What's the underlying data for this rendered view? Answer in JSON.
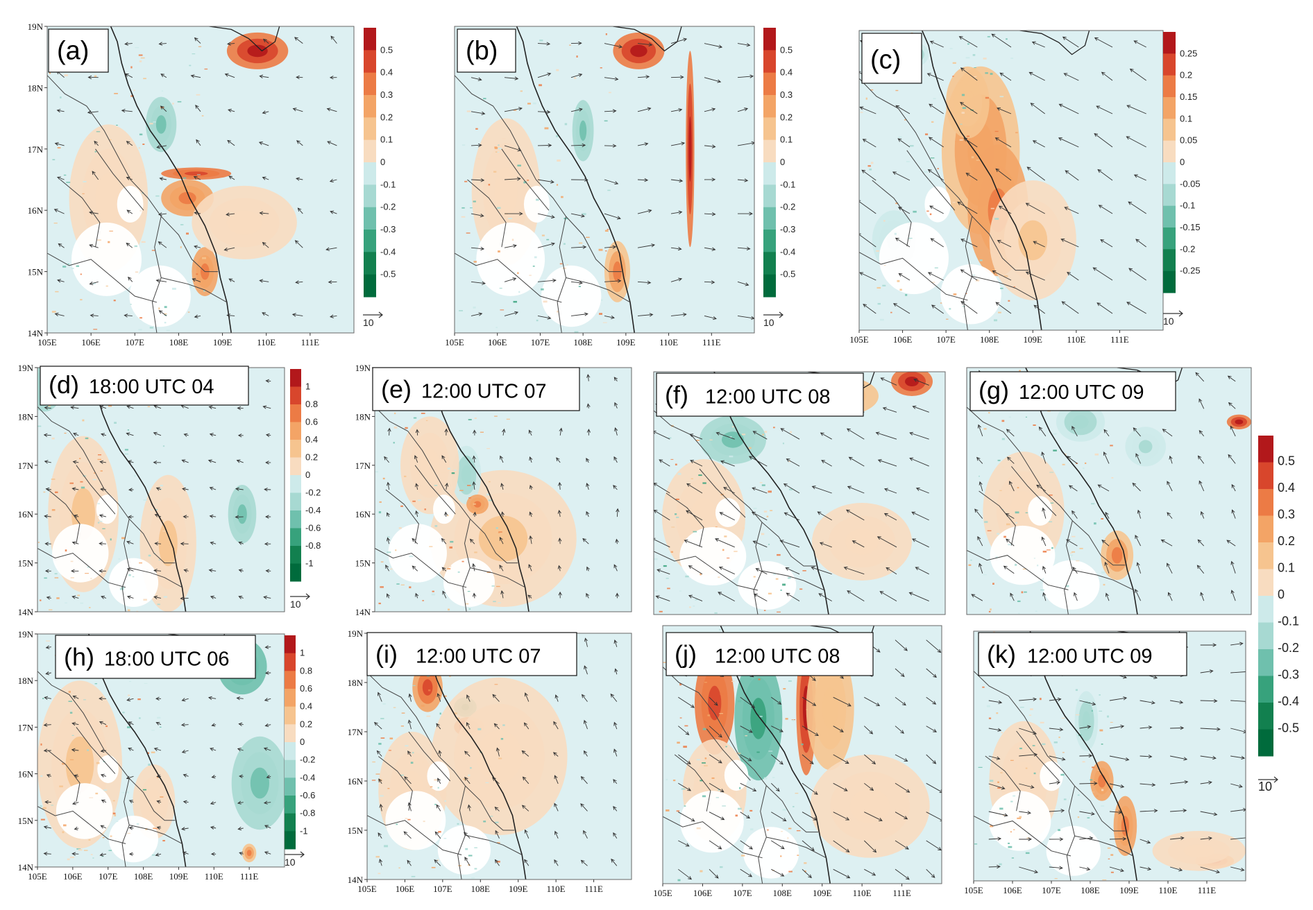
{
  "colors": {
    "field_background": "#ddf0f2",
    "land_void": "#ffffff",
    "positive_scale": [
      "#f8dcc0",
      "#f6c48f",
      "#f3a466",
      "#ec7b45",
      "#d8462c",
      "#b2181b"
    ],
    "negative_scale": [
      "#cdeaea",
      "#a7d9d2",
      "#6fc0ad",
      "#37a27c",
      "#12804f",
      "#006b3c"
    ],
    "coast_line": "#222222",
    "border_line": "#444444",
    "wind_vector": "#333333"
  },
  "icons": [
    "wind-vector-arrow",
    "reference-vector-arrow"
  ],
  "panels": [
    {
      "id": "a",
      "label": "(a)",
      "lon_ticks": [
        "105E",
        "106E",
        "107E",
        "108E",
        "109E",
        "110E",
        "111E"
      ],
      "lat_ticks": [
        "19N",
        "18N",
        "17N",
        "16N",
        "15N",
        "14N"
      ],
      "colorbar": {
        "levels": [
          "0.5",
          "0.4",
          "0.3",
          "0.2",
          "0.1",
          "0",
          "-0.1",
          "-0.2",
          "-0.3",
          "-0.4",
          "-0.5"
        ]
      },
      "reference_vector": "10"
    },
    {
      "id": "b",
      "label": "(b)",
      "lon_ticks": [
        "105E",
        "106E",
        "107E",
        "108E",
        "109E",
        "110E",
        "111E"
      ],
      "lat_ticks": [],
      "colorbar": {
        "levels": [
          "0.5",
          "0.4",
          "0.3",
          "0.2",
          "0.1",
          "0",
          "-0.1",
          "-0.2",
          "-0.3",
          "-0.4",
          "-0.5"
        ]
      },
      "reference_vector": "10"
    },
    {
      "id": "c",
      "label": "(c)",
      "lon_ticks": [
        "105E",
        "106E",
        "107E",
        "108E",
        "109E",
        "110E",
        "111E"
      ],
      "lat_ticks": [],
      "colorbar": {
        "levels": [
          "0.25",
          "0.2",
          "0.15",
          "0.1",
          "0.05",
          "0",
          "-0.05",
          "-0.1",
          "-0.15",
          "-0.2",
          "-0.25"
        ]
      },
      "reference_vector": "10"
    },
    {
      "id": "d",
      "label": "(d)",
      "time": "18:00 UTC 04",
      "lon_ticks": [],
      "lat_ticks": [
        "19N",
        "18N",
        "17N",
        "16N",
        "15N",
        "14N"
      ],
      "colorbar": {
        "levels": [
          "1",
          "0.8",
          "0.6",
          "0.4",
          "0.2",
          "0",
          "-0.2",
          "-0.4",
          "-0.6",
          "-0.8",
          "-1"
        ]
      },
      "reference_vector": "10"
    },
    {
      "id": "e",
      "label": "(e)",
      "time": "12:00 UTC 07",
      "lon_ticks": [],
      "lat_ticks": [
        "19N",
        "18N",
        "17N",
        "16N",
        "15N",
        "14N"
      ]
    },
    {
      "id": "f",
      "label": "(f)",
      "time": "12:00 UTC 08",
      "lon_ticks": [],
      "lat_ticks": []
    },
    {
      "id": "g",
      "label": "(g)",
      "time": "12:00 UTC 09",
      "lon_ticks": [],
      "lat_ticks": []
    },
    {
      "id": "h",
      "label": "(h)",
      "time": "18:00 UTC 06",
      "lon_ticks": [
        "105E",
        "106E",
        "107E",
        "108E",
        "109E",
        "110E",
        "111E"
      ],
      "lat_ticks": [
        "19N",
        "18N",
        "17N",
        "16N",
        "15N",
        "14N"
      ],
      "colorbar": {
        "levels": [
          "1",
          "0.8",
          "0.6",
          "0.4",
          "0.2",
          "0",
          "-0.2",
          "-0.4",
          "-0.6",
          "-0.8",
          "-1"
        ]
      },
      "reference_vector": "10"
    },
    {
      "id": "i",
      "label": "(i)",
      "time": "12:00 UTC 07",
      "lon_ticks": [
        "105E",
        "106E",
        "107E",
        "108E",
        "109E",
        "110E",
        "111E"
      ],
      "lat_ticks": [
        "19N",
        "18N",
        "17N",
        "16N",
        "15N",
        "14N"
      ]
    },
    {
      "id": "j",
      "label": "(j)",
      "time": "12:00 UTC 08",
      "lon_ticks": [
        "105E",
        "106E",
        "107E",
        "108E",
        "109E",
        "110E",
        "111E"
      ],
      "lat_ticks": []
    },
    {
      "id": "k",
      "label": "(k)",
      "time": "12:00 UTC 09",
      "lon_ticks": [
        "105E",
        "106E",
        "107E",
        "108E",
        "109E",
        "110E",
        "111E"
      ],
      "lat_ticks": []
    }
  ],
  "shared_colorbar": {
    "levels": [
      "0.5",
      "0.4",
      "0.3",
      "0.2",
      "0.1",
      "0",
      "-0.1",
      "-0.2",
      "-0.3",
      "-0.4",
      "-0.5"
    ],
    "reference_vector": "10"
  }
}
